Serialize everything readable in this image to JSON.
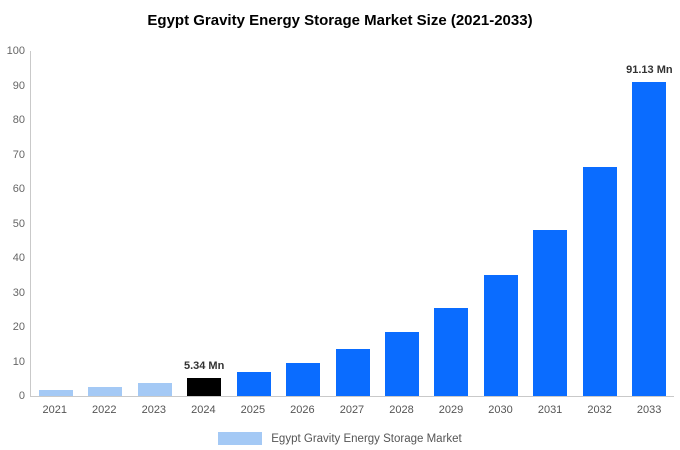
{
  "title": "Egypt Gravity Energy Storage Market Size (2021-2033)",
  "legend": {
    "label": "Egypt Gravity Energy Storage Market",
    "swatch_color": "#a4c9f5"
  },
  "colors": {
    "primary_bar": "#0a6cff",
    "historical_bar": "#a4c9f5",
    "highlight_bar": "#000000",
    "axis_line": "#c9c9c9",
    "tick_text": "#666666"
  },
  "chart_data": {
    "type": "bar",
    "title": "Egypt Gravity Energy Storage Market Size (2021-2033)",
    "categories": [
      "2021",
      "2022",
      "2023",
      "2024",
      "2025",
      "2026",
      "2027",
      "2028",
      "2029",
      "2030",
      "2031",
      "2032",
      "2033"
    ],
    "values": [
      1.8,
      2.5,
      3.7,
      5.34,
      7,
      9.5,
      13.5,
      18.5,
      25.5,
      35,
      48,
      66.5,
      91.13
    ],
    "bar_colors": [
      "#a4c9f5",
      "#a4c9f5",
      "#a4c9f5",
      "#000000",
      "#0a6cff",
      "#0a6cff",
      "#0a6cff",
      "#0a6cff",
      "#0a6cff",
      "#0a6cff",
      "#0a6cff",
      "#0a6cff",
      "#0a6cff"
    ],
    "bar_labels": [
      null,
      null,
      null,
      "5.34 Mn",
      null,
      null,
      null,
      null,
      null,
      null,
      null,
      null,
      "91.13 Mn"
    ],
    "unit": "Mn",
    "xlabel": "",
    "ylabel": "",
    "ylim": [
      0,
      100
    ],
    "ytick_step": 10,
    "grid": false,
    "legend_position": "bottom"
  }
}
